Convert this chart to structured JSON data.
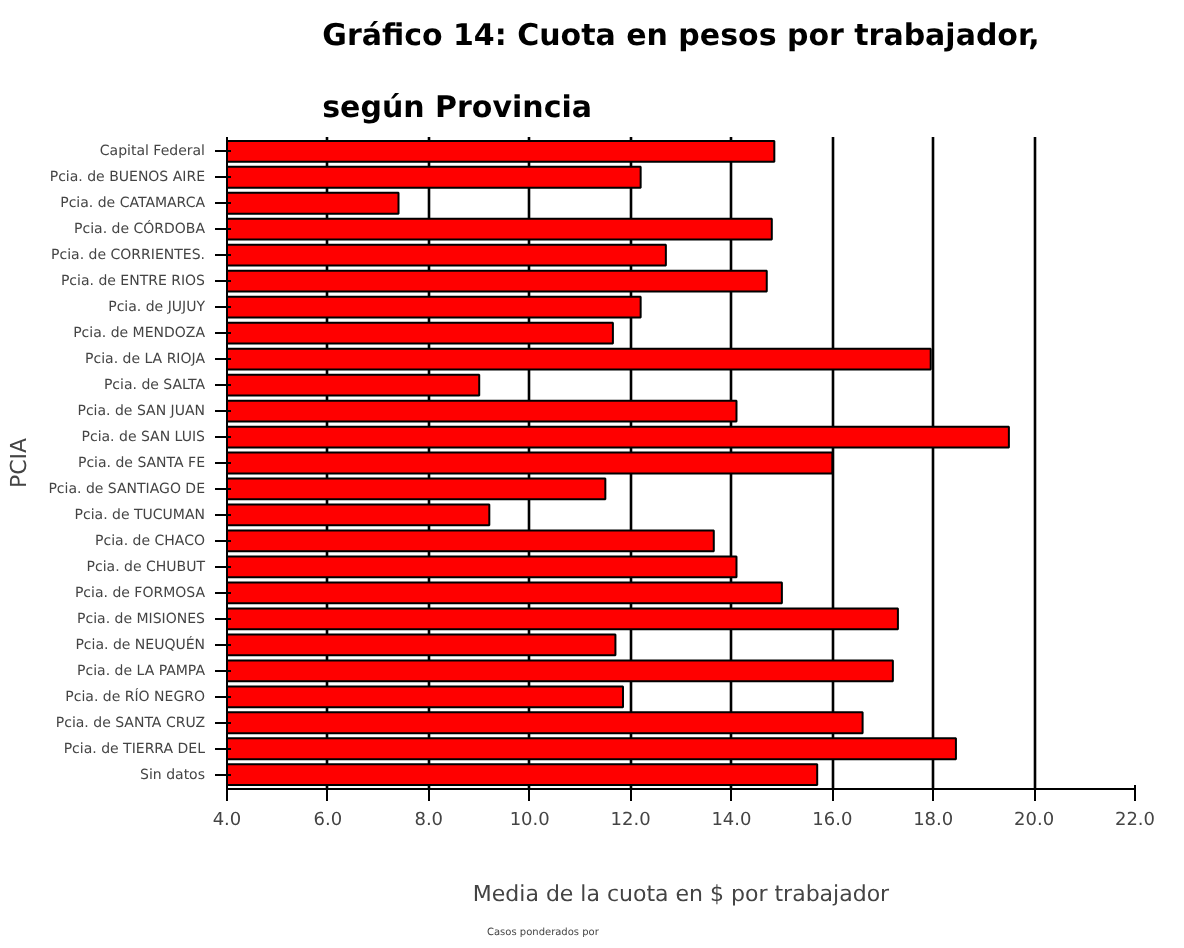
{
  "chart_data": {
    "type": "bar",
    "orientation": "horizontal",
    "title": "Gráfico 14: Cuota en pesos por trabajador,\nsegún Provincia",
    "xlabel": "Media de la cuota en $ por trabajador",
    "ylabel": "PCIA",
    "categories": [
      "Capital Federal",
      "Pcia. de BUENOS AIRE",
      "Pcia. de CATAMARCA",
      "Pcia. de CÓRDOBA",
      "Pcia. de CORRIENTES.",
      "Pcia. de ENTRE RIOS",
      "Pcia. de JUJUY",
      "Pcia. de MENDOZA",
      "Pcia. de LA RIOJA",
      "Pcia. de SALTA",
      "Pcia. de SAN JUAN",
      "Pcia. de SAN LUIS",
      "Pcia. de SANTA FE",
      "Pcia. de SANTIAGO DE",
      "Pcia. de TUCUMAN",
      "Pcia. de CHACO",
      "Pcia. de CHUBUT",
      "Pcia. de FORMOSA",
      "Pcia. de MISIONES",
      "Pcia. de NEUQUÉN",
      "Pcia. de LA PAMPA",
      "Pcia. de RÍO NEGRO",
      "Pcia. de SANTA CRUZ",
      "Pcia. de TIERRA DEL",
      "Sin datos"
    ],
    "values": [
      14.85,
      12.2,
      7.4,
      14.8,
      12.7,
      14.7,
      12.2,
      11.65,
      17.95,
      9.0,
      14.1,
      19.5,
      16.0,
      11.5,
      9.2,
      13.65,
      14.1,
      15.0,
      17.3,
      11.7,
      17.2,
      11.85,
      16.6,
      18.45,
      15.7
    ],
    "color": "#ff0000",
    "xlim": [
      4.0,
      22.0
    ],
    "xticks": [
      {
        "value": 4,
        "label": "4.0"
      },
      {
        "value": 6,
        "label": "6.0"
      },
      {
        "value": 8,
        "label": "8.0"
      },
      {
        "value": 10,
        "label": "10.0"
      },
      {
        "value": 12,
        "label": "12.0"
      },
      {
        "value": 14,
        "label": "14.0"
      },
      {
        "value": 16,
        "label": "16.0"
      },
      {
        "value": 18,
        "label": "18.0"
      },
      {
        "value": 20,
        "label": "20.0"
      },
      {
        "value": 22,
        "label": "22.0"
      }
    ],
    "grid": "x",
    "annotations": [
      "Casos ponderados por"
    ]
  }
}
